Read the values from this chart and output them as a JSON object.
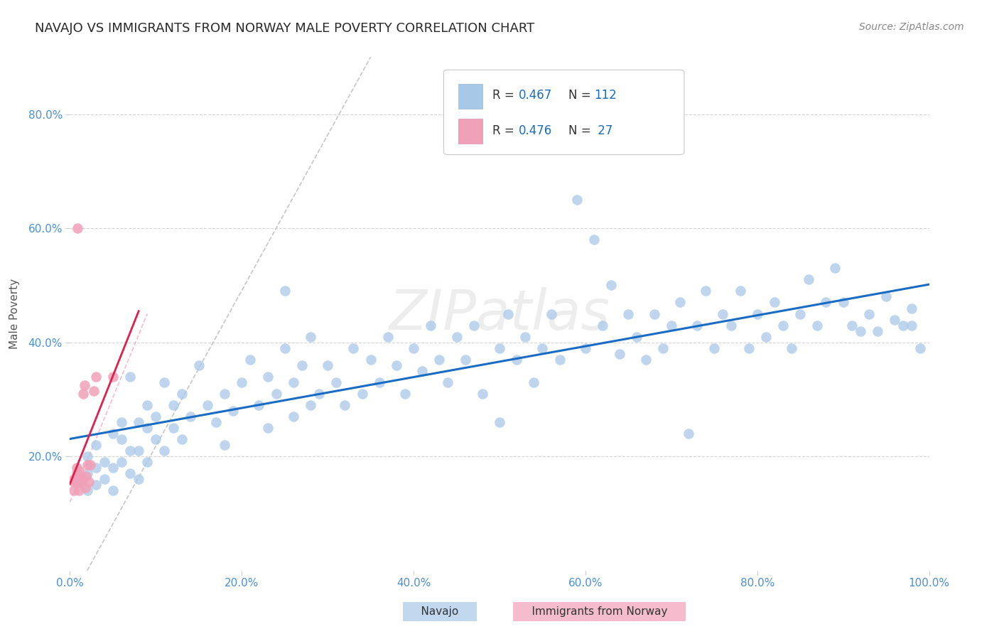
{
  "title": "NAVAJO VS IMMIGRANTS FROM NORWAY MALE POVERTY CORRELATION CHART",
  "source": "Source: ZipAtlas.com",
  "ylabel": "Male Poverty",
  "xlim": [
    0.0,
    1.0
  ],
  "ylim": [
    0.0,
    0.9
  ],
  "xtick_labels": [
    "0.0%",
    "20.0%",
    "40.0%",
    "60.0%",
    "80.0%",
    "100.0%"
  ],
  "xtick_vals": [
    0.0,
    0.2,
    0.4,
    0.6,
    0.8,
    1.0
  ],
  "ytick_labels": [
    "20.0%",
    "40.0%",
    "60.0%",
    "80.0%"
  ],
  "ytick_vals": [
    0.2,
    0.4,
    0.6,
    0.8
  ],
  "watermark": "ZIPatlas",
  "navajo_color": "#a8c8e8",
  "norway_color": "#f0a0b8",
  "navajo_line_color": "#1a6bc4",
  "norway_line_color": "#e0204a",
  "navajo_scatter": [
    [
      0.01,
      0.16
    ],
    [
      0.02,
      0.14
    ],
    [
      0.02,
      0.17
    ],
    [
      0.02,
      0.2
    ],
    [
      0.03,
      0.15
    ],
    [
      0.03,
      0.18
    ],
    [
      0.03,
      0.22
    ],
    [
      0.04,
      0.16
    ],
    [
      0.04,
      0.19
    ],
    [
      0.05,
      0.14
    ],
    [
      0.05,
      0.18
    ],
    [
      0.05,
      0.24
    ],
    [
      0.06,
      0.19
    ],
    [
      0.06,
      0.23
    ],
    [
      0.06,
      0.26
    ],
    [
      0.07,
      0.17
    ],
    [
      0.07,
      0.21
    ],
    [
      0.07,
      0.34
    ],
    [
      0.08,
      0.16
    ],
    [
      0.08,
      0.21
    ],
    [
      0.08,
      0.26
    ],
    [
      0.09,
      0.19
    ],
    [
      0.09,
      0.25
    ],
    [
      0.09,
      0.29
    ],
    [
      0.1,
      0.23
    ],
    [
      0.1,
      0.27
    ],
    [
      0.11,
      0.21
    ],
    [
      0.11,
      0.33
    ],
    [
      0.12,
      0.25
    ],
    [
      0.12,
      0.29
    ],
    [
      0.13,
      0.23
    ],
    [
      0.13,
      0.31
    ],
    [
      0.14,
      0.27
    ],
    [
      0.15,
      0.36
    ],
    [
      0.16,
      0.29
    ],
    [
      0.17,
      0.26
    ],
    [
      0.18,
      0.22
    ],
    [
      0.18,
      0.31
    ],
    [
      0.19,
      0.28
    ],
    [
      0.2,
      0.33
    ],
    [
      0.21,
      0.37
    ],
    [
      0.22,
      0.29
    ],
    [
      0.23,
      0.25
    ],
    [
      0.23,
      0.34
    ],
    [
      0.24,
      0.31
    ],
    [
      0.25,
      0.49
    ],
    [
      0.25,
      0.39
    ],
    [
      0.26,
      0.27
    ],
    [
      0.26,
      0.33
    ],
    [
      0.27,
      0.36
    ],
    [
      0.28,
      0.29
    ],
    [
      0.28,
      0.41
    ],
    [
      0.29,
      0.31
    ],
    [
      0.3,
      0.36
    ],
    [
      0.31,
      0.33
    ],
    [
      0.32,
      0.29
    ],
    [
      0.33,
      0.39
    ],
    [
      0.34,
      0.31
    ],
    [
      0.35,
      0.37
    ],
    [
      0.36,
      0.33
    ],
    [
      0.37,
      0.41
    ],
    [
      0.38,
      0.36
    ],
    [
      0.39,
      0.31
    ],
    [
      0.4,
      0.39
    ],
    [
      0.41,
      0.35
    ],
    [
      0.42,
      0.43
    ],
    [
      0.43,
      0.37
    ],
    [
      0.44,
      0.33
    ],
    [
      0.45,
      0.41
    ],
    [
      0.46,
      0.37
    ],
    [
      0.47,
      0.43
    ],
    [
      0.48,
      0.31
    ],
    [
      0.5,
      0.26
    ],
    [
      0.5,
      0.39
    ],
    [
      0.51,
      0.45
    ],
    [
      0.52,
      0.37
    ],
    [
      0.53,
      0.41
    ],
    [
      0.54,
      0.33
    ],
    [
      0.55,
      0.39
    ],
    [
      0.56,
      0.45
    ],
    [
      0.57,
      0.37
    ],
    [
      0.59,
      0.65
    ],
    [
      0.6,
      0.39
    ],
    [
      0.61,
      0.58
    ],
    [
      0.62,
      0.43
    ],
    [
      0.63,
      0.5
    ],
    [
      0.64,
      0.38
    ],
    [
      0.65,
      0.45
    ],
    [
      0.66,
      0.41
    ],
    [
      0.67,
      0.37
    ],
    [
      0.68,
      0.45
    ],
    [
      0.69,
      0.39
    ],
    [
      0.7,
      0.43
    ],
    [
      0.71,
      0.47
    ],
    [
      0.72,
      0.24
    ],
    [
      0.73,
      0.43
    ],
    [
      0.74,
      0.49
    ],
    [
      0.75,
      0.39
    ],
    [
      0.76,
      0.45
    ],
    [
      0.77,
      0.43
    ],
    [
      0.78,
      0.49
    ],
    [
      0.79,
      0.39
    ],
    [
      0.8,
      0.45
    ],
    [
      0.81,
      0.41
    ],
    [
      0.82,
      0.47
    ],
    [
      0.83,
      0.43
    ],
    [
      0.84,
      0.39
    ],
    [
      0.85,
      0.45
    ],
    [
      0.86,
      0.51
    ],
    [
      0.87,
      0.43
    ],
    [
      0.88,
      0.47
    ],
    [
      0.89,
      0.53
    ],
    [
      0.9,
      0.47
    ],
    [
      0.91,
      0.43
    ],
    [
      0.92,
      0.42
    ],
    [
      0.93,
      0.45
    ],
    [
      0.94,
      0.42
    ],
    [
      0.95,
      0.48
    ],
    [
      0.96,
      0.44
    ],
    [
      0.97,
      0.43
    ],
    [
      0.98,
      0.46
    ],
    [
      0.98,
      0.43
    ],
    [
      0.99,
      0.39
    ]
  ],
  "norway_scatter": [
    [
      0.005,
      0.14
    ],
    [
      0.005,
      0.155
    ],
    [
      0.005,
      0.16
    ],
    [
      0.007,
      0.155
    ],
    [
      0.007,
      0.16
    ],
    [
      0.008,
      0.17
    ],
    [
      0.008,
      0.18
    ],
    [
      0.009,
      0.155
    ],
    [
      0.009,
      0.6
    ],
    [
      0.01,
      0.14
    ],
    [
      0.01,
      0.155
    ],
    [
      0.01,
      0.16
    ],
    [
      0.01,
      0.175
    ],
    [
      0.012,
      0.155
    ],
    [
      0.012,
      0.165
    ],
    [
      0.013,
      0.155
    ],
    [
      0.014,
      0.16
    ],
    [
      0.015,
      0.31
    ],
    [
      0.017,
      0.325
    ],
    [
      0.018,
      0.145
    ],
    [
      0.019,
      0.165
    ],
    [
      0.02,
      0.185
    ],
    [
      0.022,
      0.155
    ],
    [
      0.024,
      0.185
    ],
    [
      0.028,
      0.315
    ],
    [
      0.03,
      0.34
    ],
    [
      0.05,
      0.34
    ]
  ],
  "background_color": "#ffffff",
  "grid_color": "#d0d0d0"
}
